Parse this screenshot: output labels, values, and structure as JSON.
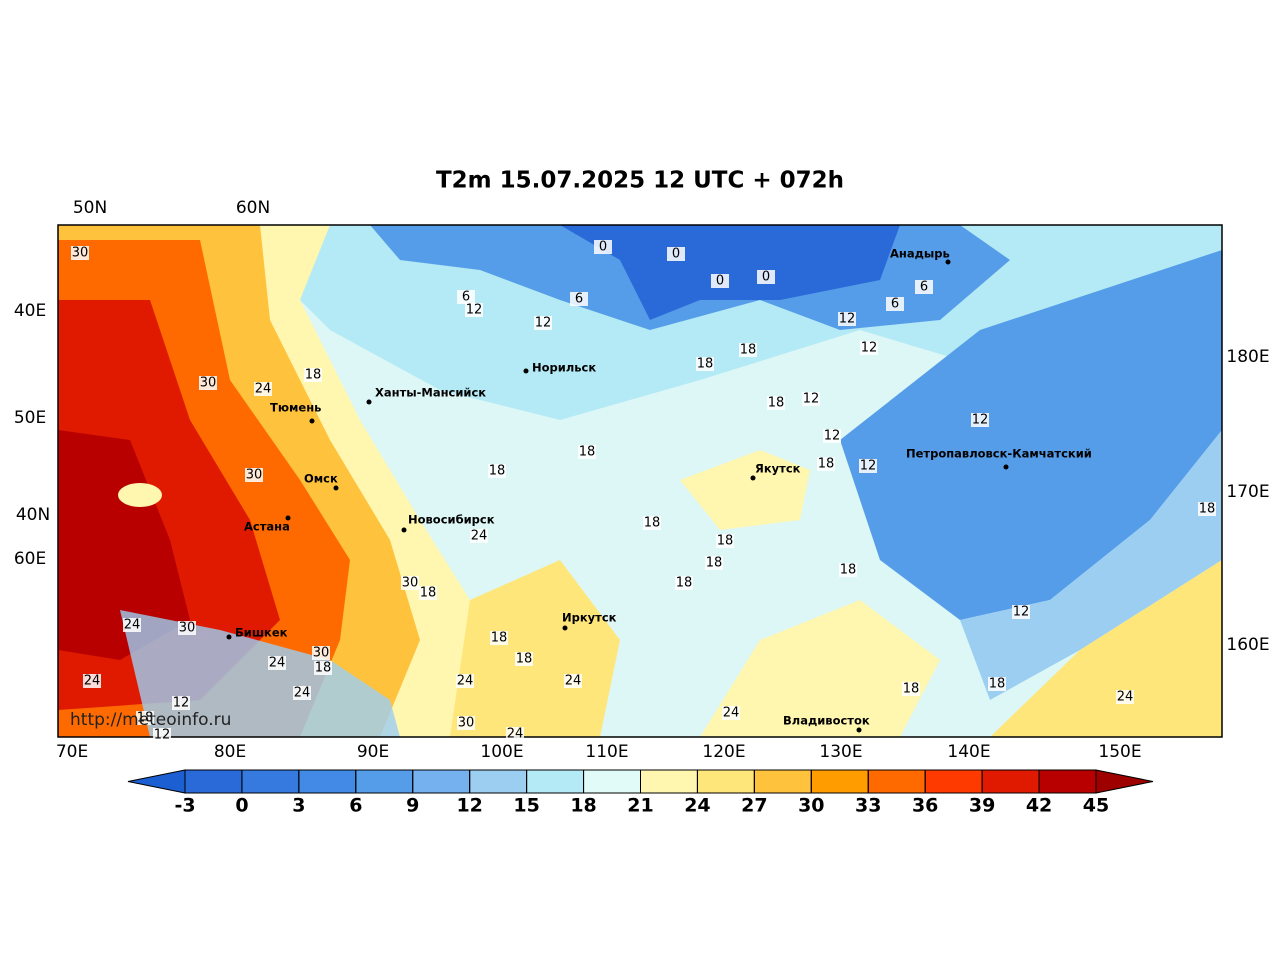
{
  "title": "T2m 15.07.2025 12 UTC + 072h",
  "lon_labels": [
    "70E",
    "80E",
    "90E",
    "100E",
    "110E",
    "120E",
    "130E",
    "140E",
    "150E"
  ],
  "lat_labels_top": [
    "50N",
    "60N"
  ],
  "left_labels": [
    "40E",
    "50E",
    "40N",
    "60E"
  ],
  "right_labels": [
    "180E",
    "170E",
    "160E"
  ],
  "cities": [
    "Анадырь",
    "Норильск",
    "Ханты-Мансийск",
    "Тюмень",
    "Петропавловск-Камчатский",
    "Омск",
    "Якутск",
    "Астана",
    "Новосибирск",
    "Иркутск",
    "Бишкек",
    "Владивосток"
  ],
  "contour_labels": [
    30,
    0,
    0,
    0,
    0,
    6,
    12,
    6,
    12,
    6,
    6,
    12,
    12,
    18,
    18,
    18,
    30,
    24,
    18,
    12,
    12,
    12,
    18,
    18,
    18,
    12,
    30,
    18,
    18,
    24,
    18,
    18,
    18,
    30,
    18,
    18,
    24,
    30,
    12,
    18,
    30,
    24,
    18,
    18,
    24,
    24,
    24,
    24,
    18,
    18,
    24,
    12,
    30,
    24,
    18,
    12,
    24
  ],
  "watermark": "http://meteoinfo.ru",
  "colorbar": {
    "ticks": [
      -3,
      0,
      3,
      6,
      9,
      12,
      15,
      18,
      21,
      24,
      27,
      30,
      33,
      36,
      39,
      42,
      45
    ],
    "colors": [
      "#2a6ad8",
      "#3679df",
      "#428ae6",
      "#559de9",
      "#75b1ee",
      "#9ccef2",
      "#b4eaf5",
      "#e0fbf8",
      "#fff6b0",
      "#ffe67a",
      "#ffc23d",
      "#ff9d00",
      "#ff6a00",
      "#ff3a00",
      "#e01a00",
      "#b80000"
    ],
    "under_color": "#1c5fd2",
    "over_color": "#9e0000"
  }
}
